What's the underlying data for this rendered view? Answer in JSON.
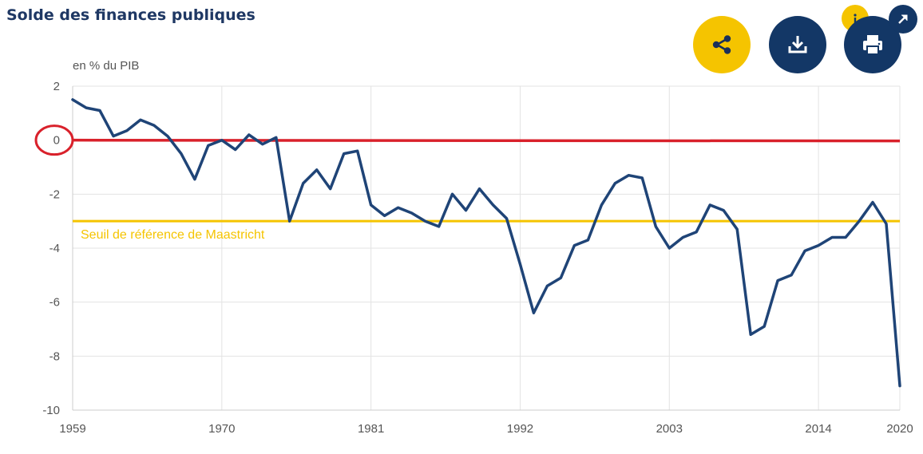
{
  "header": {
    "title": "Solde des finances publiques"
  },
  "toolbar": {
    "share_icon": "share-icon",
    "download_icon": "download-icon",
    "print_icon": "printer-icon",
    "info_icon": "info-icon",
    "expand_icon": "arrow-up-right-icon"
  },
  "colors": {
    "title": "#1f3864",
    "series": "#1f4477",
    "threshold": "#f5c400",
    "zero_highlight": "#d9212b",
    "button_yellow": "#f5c400",
    "button_blue": "#133766",
    "grid": "#e3e3e3"
  },
  "chart_data": {
    "type": "line",
    "title": "Solde des finances publiques",
    "ylabel": "en % du PIB",
    "xlabel": "",
    "xlim": [
      1959,
      2020
    ],
    "ylim": [
      -10,
      2
    ],
    "x_ticks": [
      1959,
      1970,
      1981,
      1992,
      2003,
      2014,
      2020
    ],
    "y_ticks": [
      2,
      0,
      -2,
      -4,
      -6,
      -8,
      -10
    ],
    "grid": true,
    "series": [
      {
        "name": "Solde des finances publiques",
        "x": [
          1959,
          1960,
          1961,
          1962,
          1963,
          1964,
          1965,
          1966,
          1967,
          1968,
          1969,
          1970,
          1971,
          1972,
          1973,
          1974,
          1975,
          1976,
          1977,
          1978,
          1979,
          1980,
          1981,
          1982,
          1983,
          1984,
          1985,
          1986,
          1987,
          1988,
          1989,
          1990,
          1991,
          1992,
          1993,
          1994,
          1995,
          1996,
          1997,
          1998,
          1999,
          2000,
          2001,
          2002,
          2003,
          2004,
          2005,
          2006,
          2007,
          2008,
          2009,
          2010,
          2011,
          2012,
          2013,
          2014,
          2015,
          2016,
          2017,
          2018,
          2019,
          2020
        ],
        "values": [
          1.5,
          1.2,
          1.1,
          0.15,
          0.35,
          0.75,
          0.55,
          0.15,
          -0.5,
          -1.45,
          -0.2,
          0.0,
          -0.35,
          0.2,
          -0.15,
          0.1,
          -3.0,
          -1.6,
          -1.1,
          -1.8,
          -0.5,
          -0.4,
          -2.4,
          -2.8,
          -2.5,
          -2.7,
          -3.0,
          -3.2,
          -2.0,
          -2.6,
          -1.8,
          -2.4,
          -2.9,
          -4.6,
          -6.4,
          -5.4,
          -5.1,
          -3.9,
          -3.7,
          -2.4,
          -1.6,
          -1.3,
          -1.4,
          -3.2,
          -4.0,
          -3.6,
          -3.4,
          -2.4,
          -2.6,
          -3.3,
          -7.2,
          -6.9,
          -5.2,
          -5.0,
          -4.1,
          -3.9,
          -3.6,
          -3.6,
          -3.0,
          -2.3,
          -3.1,
          -9.1
        ]
      }
    ],
    "reference_lines": [
      {
        "name": "maastricht",
        "y": -3,
        "label": "Seuil de référence de Maastricht"
      },
      {
        "name": "zero-highlight",
        "y": 0,
        "label": ""
      }
    ],
    "annotations": [
      {
        "type": "circle",
        "target": "y-tick-0"
      }
    ]
  }
}
